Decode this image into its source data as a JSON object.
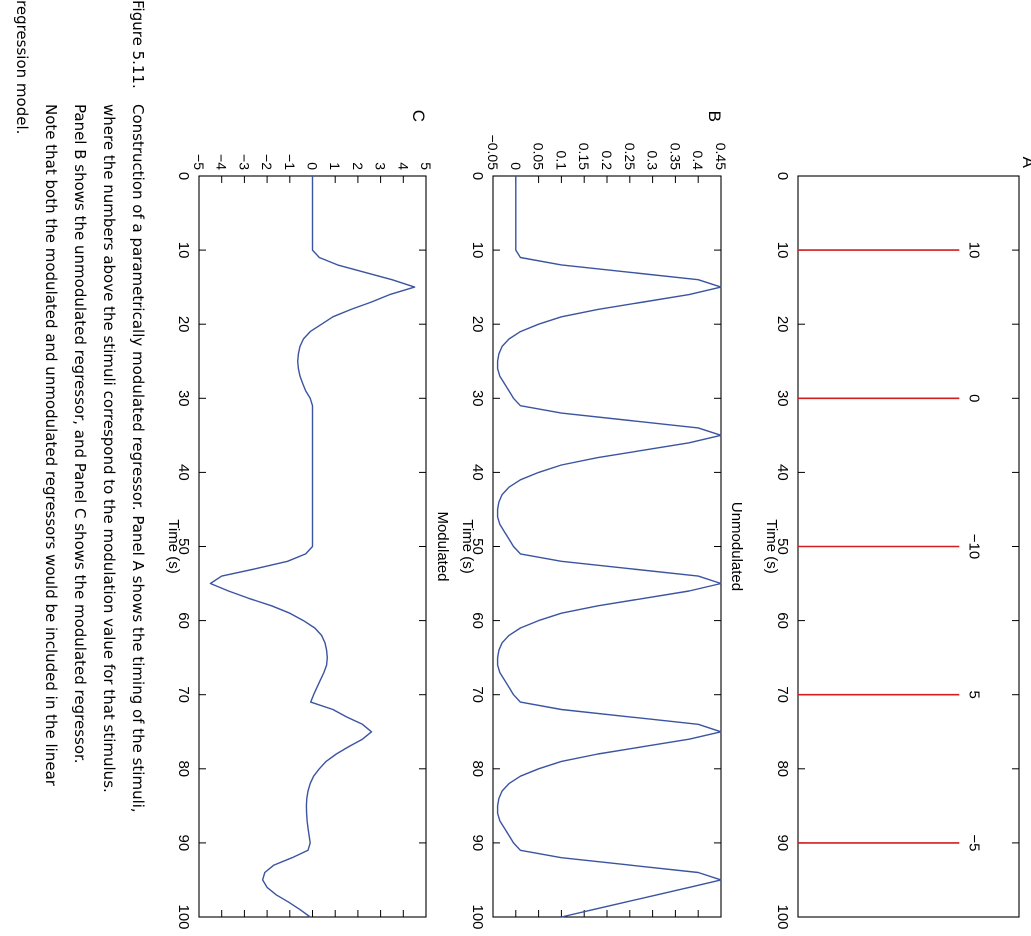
{
  "chart_data": [
    {
      "panel": "A",
      "type": "stem",
      "xlabel": "Time (s)",
      "ylabel": "",
      "xlim": [
        0,
        100
      ],
      "ylim": [
        0,
        1
      ],
      "x_ticks": [
        0,
        10,
        20,
        30,
        40,
        50,
        60,
        70,
        80,
        90,
        100
      ],
      "y_ticks": [],
      "color": "#d21f1f",
      "stimuli": [
        {
          "x": 10,
          "label": "10"
        },
        {
          "x": 30,
          "label": "0"
        },
        {
          "x": 50,
          "label": "−10"
        },
        {
          "x": 70,
          "label": "5"
        },
        {
          "x": 90,
          "label": "−5"
        }
      ]
    },
    {
      "panel": "B",
      "type": "line",
      "title": "Unmodulated",
      "xlabel": "Time (s)",
      "ylabel": "",
      "xlim": [
        0,
        100
      ],
      "ylim": [
        -0.05,
        0.45
      ],
      "x_ticks": [
        0,
        10,
        20,
        30,
        40,
        50,
        60,
        70,
        80,
        90,
        100
      ],
      "y_ticks": [
        -0.05,
        0,
        0.05,
        0.1,
        0.15,
        0.2,
        0.25,
        0.3,
        0.35,
        0.4,
        0.45
      ],
      "y_tick_labels": [
        "−0.05",
        "0",
        "0.05",
        "0.1",
        "0.15",
        "0.2",
        "0.25",
        "0.3",
        "0.35",
        "0.4",
        "0.45"
      ],
      "color": "#3b54a0",
      "x": [
        0,
        10,
        11,
        12,
        13,
        14,
        15,
        16,
        17,
        18,
        19,
        20,
        21,
        22,
        23,
        24,
        25,
        26,
        27,
        28,
        29,
        30,
        31,
        32,
        33,
        34,
        35,
        36,
        37,
        38,
        39,
        40,
        41,
        42,
        43,
        44,
        45,
        46,
        47,
        48,
        49,
        50,
        51,
        52,
        53,
        54,
        55,
        56,
        57,
        58,
        59,
        60,
        61,
        62,
        63,
        64,
        65,
        66,
        67,
        68,
        69,
        70,
        71,
        72,
        73,
        74,
        75,
        76,
        77,
        78,
        79,
        80,
        81,
        82,
        83,
        84,
        85,
        86,
        87,
        88,
        89,
        90,
        91,
        92,
        93,
        94,
        95,
        96,
        97,
        98,
        99,
        100
      ],
      "y": [
        0,
        0,
        0.01,
        0.1,
        0.25,
        0.4,
        0.45,
        0.38,
        0.28,
        0.18,
        0.1,
        0.05,
        0.01,
        -0.015,
        -0.03,
        -0.037,
        -0.04,
        -0.04,
        -0.035,
        -0.025,
        -0.015,
        -0.005,
        0.01,
        0.1,
        0.25,
        0.4,
        0.45,
        0.38,
        0.28,
        0.18,
        0.1,
        0.05,
        0.01,
        -0.015,
        -0.03,
        -0.037,
        -0.04,
        -0.04,
        -0.035,
        -0.025,
        -0.015,
        -0.005,
        0.01,
        0.1,
        0.25,
        0.4,
        0.45,
        0.38,
        0.28,
        0.18,
        0.1,
        0.05,
        0.01,
        -0.015,
        -0.03,
        -0.037,
        -0.04,
        -0.04,
        -0.035,
        -0.025,
        -0.015,
        -0.005,
        0.01,
        0.1,
        0.25,
        0.4,
        0.45,
        0.38,
        0.28,
        0.18,
        0.1,
        0.05,
        0.01,
        -0.015,
        -0.03,
        -0.037,
        -0.04,
        -0.04,
        -0.035,
        -0.025,
        -0.015,
        -0.005,
        0.01,
        0.1,
        0.25,
        0.4,
        0.45,
        0.38,
        0.31,
        0.24,
        0.17,
        0.1
      ]
    },
    {
      "panel": "C",
      "type": "line",
      "title": "Modulated",
      "xlabel": "Time (s)",
      "ylabel": "",
      "xlim": [
        0,
        100
      ],
      "ylim": [
        -5,
        5
      ],
      "x_ticks": [
        0,
        10,
        20,
        30,
        40,
        50,
        60,
        70,
        80,
        90,
        100
      ],
      "y_ticks": [
        -5,
        -4,
        -3,
        -2,
        -1,
        0,
        1,
        2,
        3,
        4,
        5
      ],
      "y_tick_labels": [
        "−5",
        "−4",
        "−3",
        "−2",
        "−1",
        "0",
        "1",
        "2",
        "3",
        "4",
        "5"
      ],
      "color": "#3b54a0",
      "x": [
        0,
        10,
        11,
        12,
        13,
        14,
        15,
        16,
        17,
        18,
        19,
        20,
        21,
        22,
        23,
        24,
        25,
        26,
        27,
        28,
        29,
        30,
        31,
        32,
        33,
        34,
        35,
        36,
        37,
        38,
        39,
        40,
        41,
        42,
        43,
        44,
        45,
        46,
        47,
        48,
        49,
        50,
        51,
        52,
        53,
        54,
        55,
        56,
        57,
        58,
        59,
        60,
        61,
        62,
        63,
        64,
        65,
        66,
        67,
        68,
        69,
        70,
        71,
        72,
        73,
        74,
        75,
        76,
        77,
        78,
        79,
        80,
        81,
        82,
        83,
        84,
        85,
        86,
        87,
        88,
        89,
        90,
        91,
        92,
        93,
        94,
        95,
        96,
        97,
        98,
        99,
        100
      ],
      "y": [
        0,
        0,
        0.3,
        1.1,
        2.3,
        3.5,
        4.5,
        3.4,
        2.6,
        1.7,
        0.9,
        0.4,
        -0.1,
        -0.4,
        -0.55,
        -0.62,
        -0.65,
        -0.62,
        -0.55,
        -0.43,
        -0.3,
        -0.1,
        0,
        0,
        0,
        0,
        0,
        0,
        0,
        0,
        0,
        0,
        0,
        0,
        0,
        0,
        0,
        0,
        0,
        0,
        0,
        0,
        -0.3,
        -1.1,
        -2.5,
        -4.0,
        -4.5,
        -3.7,
        -2.8,
        -1.8,
        -1.0,
        -0.4,
        0.1,
        0.4,
        0.55,
        0.62,
        0.65,
        0.62,
        0.5,
        0.35,
        0.2,
        0.05,
        -0.08,
        0.9,
        1.5,
        2.2,
        2.6,
        2.2,
        1.6,
        1.05,
        0.6,
        0.3,
        0.05,
        -0.1,
        -0.2,
        -0.25,
        -0.27,
        -0.26,
        -0.24,
        -0.2,
        -0.15,
        -0.1,
        -0.2,
        -0.9,
        -1.7,
        -2.1,
        -2.2,
        -2.0,
        -1.6,
        -1.05,
        -0.55,
        -0.1
      ]
    }
  ],
  "caption": {
    "label": "Figure 5.11.",
    "lines": [
      "Construction of a parametrically modulated regressor. Panel A shows the timing of the stimuli,",
      "where the numbers above the stimuli correspond to the modulation value for that stimulus.",
      "Panel B shows the unmodulated regressor, and Panel C shows the modulated regressor.",
      "Note that both the modulated and unmodulated regressors would be included in the linear",
      "regression model."
    ]
  }
}
